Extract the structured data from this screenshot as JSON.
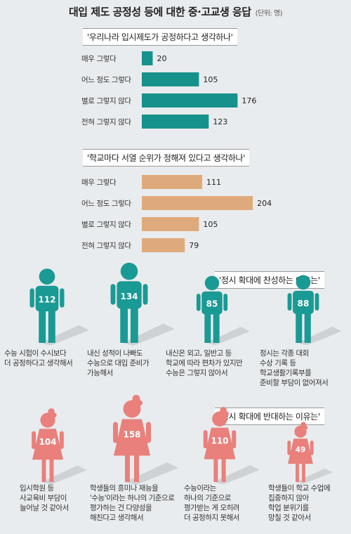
{
  "title": "대입 제도 공정성 등에 대한 중·고교생 응답",
  "unit": "(단위: 명)",
  "chart_data": [
    {
      "type": "bar",
      "orientation": "horizontal",
      "title": "'우리나라 입시제도가 공정하다고 생각하나'",
      "categories": [
        "매우 그렇다",
        "어느 정도 그렇다",
        "별로 그렇지 않다",
        "전혀 그렇지 않다"
      ],
      "values": [
        20,
        105,
        176,
        123
      ],
      "color": "#16918c"
    },
    {
      "type": "bar",
      "orientation": "horizontal",
      "title": "'학교마다 서열 순위가 정해져 있다고 생각하나'",
      "categories": [
        "매우 그렇다",
        "어느 정도 그렇다",
        "별로 그렇지 않다",
        "전혀 그렇지 않다"
      ],
      "values": [
        111,
        204,
        105,
        79
      ],
      "color": "#dfaa7b"
    },
    {
      "type": "pictogram",
      "title": "'정시 확대에 찬성하는 이유는'",
      "categories": [
        "수능 시험이 수시보다\n더 공정하다고 생각해서",
        "내신 성적이 나빠도\n수능으로 대입 준비가\n가능해서",
        "내신은 외고, 일반고 등\n학교에 따라 편차가 있지만\n수능은 그렇지 않아서",
        "정시는 각종 대회\n수상 기록 등\n학교생활기록부를\n준비할 부담이 없어져서"
      ],
      "values": [
        112,
        134,
        85,
        88
      ],
      "color": "#1a9a94"
    },
    {
      "type": "pictogram",
      "title": "'정시 확대에 반대하는 이유는'",
      "categories": [
        "입시학원 등\n사교육비 부담이\n늘어날 것 같아서",
        "학생들의 흥미나 재능을\n'수능'이라는 하나의 기준으로\n평가하는 건 다양성을\n해친다고 생각해서",
        "수능이라는\n하나의 기준으로\n평가받는 게 오히려\n더 공정하지 못해서",
        "학생들이 학교 수업에\n집중하지 않아\n학업 분위기를\n망칠 것 같아서"
      ],
      "values": [
        104,
        158,
        110,
        49
      ],
      "color": "#e9807c"
    }
  ]
}
